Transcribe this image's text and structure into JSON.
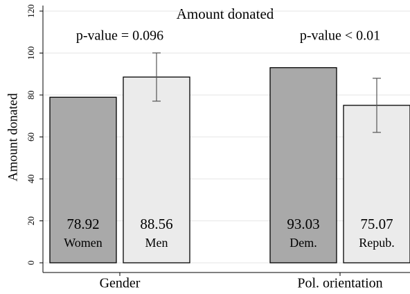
{
  "chart_data": {
    "type": "bar",
    "title": "Amount donated",
    "y_label": "Amount donated",
    "groups": [
      {
        "name": "Gender",
        "annotation": "p-value = 0.096",
        "categories": [
          "Women",
          "Men"
        ],
        "values": [
          78.92,
          88.56
        ],
        "errors": [
          null,
          11.5
        ],
        "colors": [
          "#a9a9a9",
          "#ebebeb"
        ]
      },
      {
        "name": "Pol. orientation",
        "annotation": "p-value < 0.01",
        "categories": [
          "Dem.",
          "Repub."
        ],
        "values": [
          93.03,
          75.07
        ],
        "errors": [
          null,
          12.9
        ],
        "colors": [
          "#a9a9a9",
          "#ebebeb"
        ]
      }
    ],
    "ylim": [
      0,
      120
    ],
    "yticks": [
      0,
      20,
      40,
      60,
      80,
      100,
      120
    ],
    "grid": true
  }
}
